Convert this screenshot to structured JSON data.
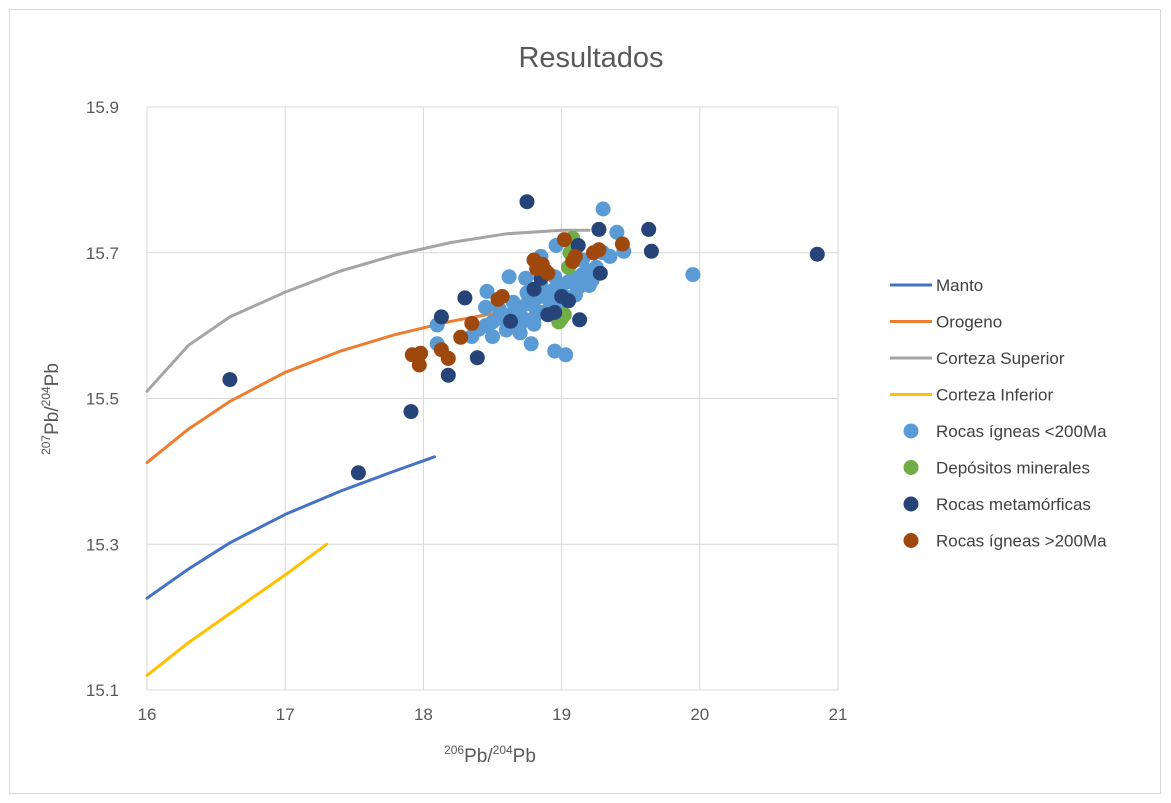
{
  "chart_data": {
    "type": "scatter",
    "title": "Resultados",
    "xlabel": {
      "pre_sup": "206",
      "main1": "Pb/",
      "mid_sup": "204",
      "main2": "Pb"
    },
    "ylabel": {
      "pre_sup": "207",
      "main1": "Pb/",
      "mid_sup": "204",
      "main2": "Pb"
    },
    "xlim": [
      16,
      21
    ],
    "ylim": [
      15.1,
      15.9
    ],
    "x_ticks": [
      "16",
      "17",
      "18",
      "19",
      "20",
      "21"
    ],
    "y_ticks": [
      "15.1",
      "15.3",
      "15.5",
      "15.7",
      "15.9"
    ],
    "grid": true,
    "legend_position": "right",
    "lines": [
      {
        "name": "Manto",
        "color": "#4472C4",
        "x": [
          16.0,
          16.3,
          16.6,
          17.0,
          17.4,
          17.8,
          18.08
        ],
        "y": [
          15.226,
          15.266,
          15.302,
          15.341,
          15.373,
          15.401,
          15.42
        ]
      },
      {
        "name": "Orogeno",
        "color": "#ED7D31",
        "x": [
          16.0,
          16.3,
          16.6,
          17.0,
          17.4,
          17.8,
          18.2,
          18.6,
          19.0
        ],
        "y": [
          15.412,
          15.458,
          15.496,
          15.536,
          15.565,
          15.588,
          15.606,
          15.62,
          15.63
        ]
      },
      {
        "name": "Corteza Superior",
        "color": "#A5A5A5",
        "x": [
          16.0,
          16.3,
          16.6,
          17.0,
          17.4,
          17.8,
          18.2,
          18.6,
          19.0,
          19.2
        ],
        "y": [
          15.51,
          15.573,
          15.612,
          15.646,
          15.675,
          15.697,
          15.714,
          15.726,
          15.731,
          15.731
        ]
      },
      {
        "name": "Corteza Inferior",
        "color": "#FFC000",
        "x": [
          16.0,
          16.3,
          16.6,
          17.0,
          17.3
        ],
        "y": [
          15.12,
          15.165,
          15.205,
          15.258,
          15.3
        ]
      }
    ],
    "series": [
      {
        "name": "Rocas ígneas <200Ma",
        "color": "#5B9BD5",
        "x": [
          18.1,
          18.35,
          18.4,
          18.45,
          18.5,
          18.55,
          18.6,
          18.65,
          18.7,
          18.75,
          18.8,
          18.85,
          18.9,
          18.95,
          19.0,
          19.05,
          19.1,
          19.15,
          19.2,
          19.25,
          18.5,
          18.6,
          18.7,
          18.8,
          18.9,
          19.0,
          19.1,
          19.2,
          18.55,
          18.65,
          18.75,
          18.85,
          18.95,
          19.05,
          19.15,
          18.62,
          18.72,
          18.82,
          18.92,
          19.02,
          19.12,
          19.22,
          18.46,
          18.62,
          18.74,
          18.96,
          19.3,
          19.4,
          19.45,
          19.35,
          19.95,
          18.78,
          18.95,
          19.03,
          18.8,
          18.1,
          18.85,
          18.45,
          18.7,
          19.3
        ],
        "y": [
          15.601,
          15.585,
          15.595,
          15.6,
          15.605,
          15.61,
          15.612,
          15.618,
          15.625,
          15.63,
          15.635,
          15.64,
          15.645,
          15.65,
          15.655,
          15.66,
          15.665,
          15.67,
          15.675,
          15.68,
          15.585,
          15.594,
          15.602,
          15.61,
          15.62,
          15.632,
          15.642,
          15.655,
          15.622,
          15.632,
          15.645,
          15.655,
          15.667,
          15.68,
          15.69,
          15.6,
          15.61,
          15.62,
          15.63,
          15.64,
          15.652,
          15.662,
          15.647,
          15.667,
          15.665,
          15.71,
          15.76,
          15.728,
          15.702,
          15.695,
          15.67,
          15.575,
          15.565,
          15.56,
          15.602,
          15.575,
          15.695,
          15.625,
          15.59,
          15.7
        ]
      },
      {
        "name": "Depósitos minerales",
        "color": "#70AD47",
        "x": [
          18.98,
          19.0,
          19.02,
          19.05,
          19.08,
          19.06
        ],
        "y": [
          15.605,
          15.61,
          15.615,
          15.68,
          15.72,
          15.7
        ]
      },
      {
        "name": "Rocas metamórficas",
        "color": "#264478",
        "x": [
          16.6,
          17.53,
          17.91,
          18.13,
          18.18,
          18.3,
          18.39,
          18.63,
          18.75,
          18.8,
          18.85,
          18.9,
          18.95,
          19.05,
          19.12,
          19.13,
          19.27,
          19.28,
          19.63,
          19.65,
          20.85,
          19.0
        ],
        "y": [
          15.526,
          15.398,
          15.482,
          15.612,
          15.532,
          15.638,
          15.556,
          15.606,
          15.77,
          15.65,
          15.665,
          15.615,
          15.618,
          15.634,
          15.71,
          15.608,
          15.732,
          15.672,
          15.732,
          15.702,
          15.698,
          15.64
        ]
      },
      {
        "name": "Rocas ígneas >200Ma",
        "color": "#9E480E",
        "x": [
          17.92,
          17.97,
          17.98,
          18.13,
          18.18,
          18.27,
          18.35,
          18.54,
          18.57,
          18.8,
          18.82,
          18.86,
          18.88,
          19.02,
          19.08,
          19.1,
          19.23,
          19.27,
          19.44,
          18.9
        ],
        "y": [
          15.56,
          15.546,
          15.562,
          15.567,
          15.555,
          15.584,
          15.603,
          15.636,
          15.64,
          15.69,
          15.678,
          15.684,
          15.676,
          15.718,
          15.688,
          15.695,
          15.7,
          15.704,
          15.712,
          15.672
        ]
      }
    ]
  }
}
